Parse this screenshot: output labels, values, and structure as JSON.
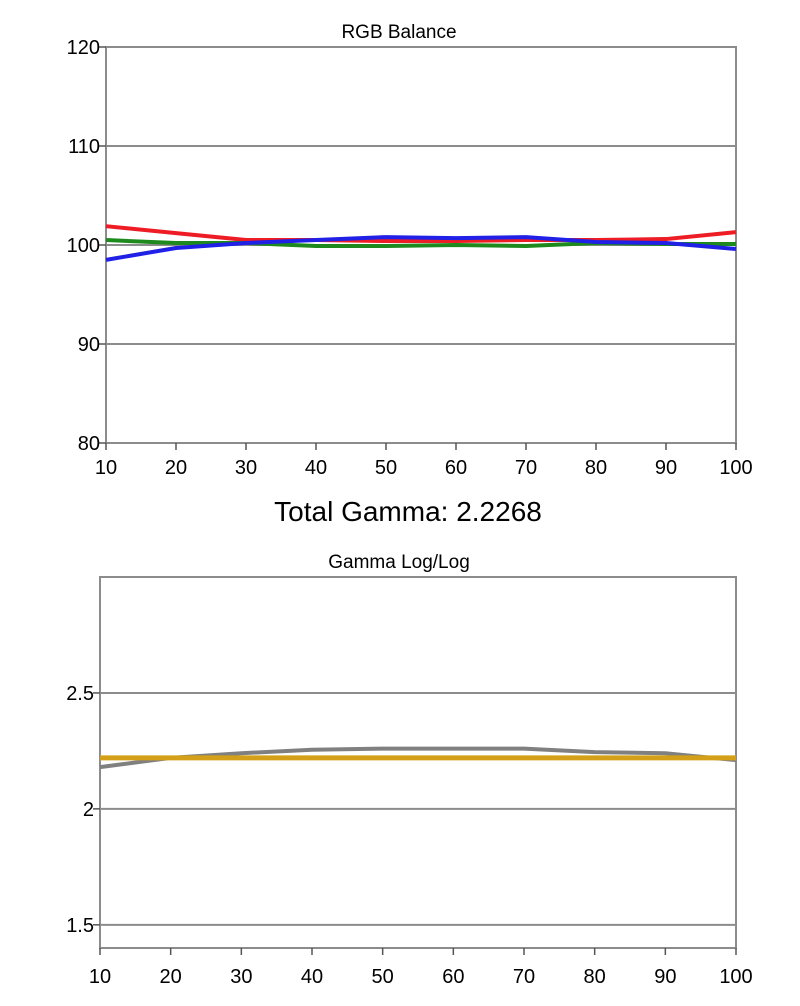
{
  "summary": {
    "total_gamma_label": "Total Gamma: 2.2268"
  },
  "chart_data": [
    {
      "type": "line",
      "title": "RGB Balance",
      "xlabel": "",
      "ylabel": "",
      "x": [
        10,
        20,
        30,
        40,
        50,
        60,
        70,
        80,
        90,
        100
      ],
      "xlim": [
        10,
        100
      ],
      "ylim": [
        80,
        120
      ],
      "x_ticks": [
        "10",
        "20",
        "30",
        "40",
        "50",
        "60",
        "70",
        "80",
        "90",
        "100"
      ],
      "y_ticks": [
        "80",
        "90",
        "100",
        "110",
        "120"
      ],
      "y_tick_values": [
        80,
        90,
        100,
        110,
        120
      ],
      "grid": true,
      "series": [
        {
          "color": "#ee1c24",
          "values": [
            101.9,
            101.2,
            100.5,
            100.5,
            100.4,
            100.4,
            100.5,
            100.5,
            100.6,
            101.3
          ]
        },
        {
          "color": "#1e8a1e",
          "values": [
            100.5,
            100.2,
            100.2,
            99.9,
            99.9,
            100.0,
            99.9,
            100.2,
            100.1,
            100.1
          ]
        },
        {
          "color": "#2020e6",
          "values": [
            98.5,
            99.7,
            100.2,
            100.5,
            100.8,
            100.7,
            100.8,
            100.3,
            100.2,
            99.6
          ]
        }
      ]
    },
    {
      "type": "line",
      "title": "Gamma Log/Log",
      "xlabel": "",
      "ylabel": "",
      "x": [
        10,
        20,
        30,
        40,
        50,
        60,
        70,
        80,
        90,
        100
      ],
      "xlim": [
        10,
        100
      ],
      "ylim": [
        1.4,
        3.0
      ],
      "x_ticks": [
        "10",
        "20",
        "30",
        "40",
        "50",
        "60",
        "70",
        "80",
        "90",
        "100"
      ],
      "y_ticks": [
        "1.5",
        "2",
        "2.5"
      ],
      "y_tick_values": [
        1.5,
        2.0,
        2.5
      ],
      "grid": true,
      "series": [
        {
          "color": "#808080",
          "values": [
            2.18,
            2.22,
            2.24,
            2.255,
            2.26,
            2.26,
            2.26,
            2.245,
            2.24,
            2.21
          ]
        },
        {
          "color": "#d4a017",
          "values": [
            2.22,
            2.22,
            2.22,
            2.22,
            2.22,
            2.22,
            2.22,
            2.22,
            2.22,
            2.22
          ]
        }
      ]
    }
  ]
}
